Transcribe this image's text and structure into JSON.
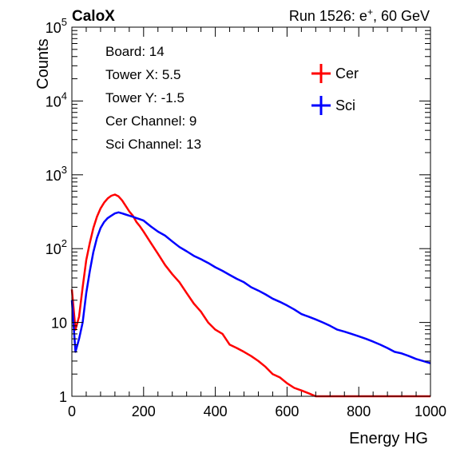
{
  "header": {
    "left_label": "CaloX",
    "right_label_prefix": "Run 1526: e",
    "right_label_sup": "+",
    "right_label_suffix": ", 60 GeV"
  },
  "info_box": {
    "lines": [
      "Board: 14",
      "Tower X: 5.5",
      "Tower Y: -1.5",
      "Cer Channel: 9",
      "Sci Channel: 13"
    ]
  },
  "colors": {
    "cer": "#ff0000",
    "sci": "#0000ff",
    "axis": "#000000"
  },
  "chart_data": {
    "type": "line",
    "title": "",
    "xlabel": "Energy HG",
    "ylabel": "Counts",
    "xlim": [
      0,
      1000
    ],
    "ylim": [
      1,
      100000
    ],
    "y_scale": "log",
    "grid": false,
    "legend_placement": "top-right",
    "x_ticks": [
      "0",
      "200",
      "400",
      "600",
      "800",
      "1000"
    ],
    "y_ticks": [
      {
        "base": "1",
        "exp": ""
      },
      {
        "base": "10",
        "exp": ""
      },
      {
        "base": "10",
        "exp": "2"
      },
      {
        "base": "10",
        "exp": "3"
      },
      {
        "base": "10",
        "exp": "4"
      },
      {
        "base": "10",
        "exp": "5"
      }
    ],
    "x": [
      0,
      10,
      20,
      30,
      40,
      50,
      60,
      70,
      80,
      90,
      100,
      110,
      120,
      130,
      140,
      150,
      160,
      170,
      180,
      190,
      200,
      220,
      240,
      260,
      280,
      300,
      320,
      340,
      360,
      380,
      400,
      420,
      440,
      460,
      480,
      500,
      520,
      540,
      560,
      580,
      600,
      620,
      640,
      660,
      680,
      700,
      720,
      740,
      760,
      780,
      800,
      820,
      840,
      860,
      880,
      900,
      920,
      940,
      960,
      980,
      1000
    ],
    "series": [
      {
        "name": "Cer",
        "values": [
          28,
          8,
          12,
          30,
          70,
          120,
          190,
          270,
          350,
          420,
          480,
          520,
          540,
          510,
          450,
          380,
          320,
          280,
          230,
          200,
          170,
          120,
          85,
          60,
          45,
          35,
          25,
          18,
          14,
          10,
          8,
          7,
          5,
          4.5,
          4,
          3.5,
          3,
          2.5,
          2,
          1.8,
          1.5,
          1.3,
          1.2,
          1.1,
          1,
          1,
          1,
          1,
          1,
          1,
          1,
          1,
          1,
          1,
          1,
          1,
          1,
          1,
          1,
          1,
          1
        ]
      },
      {
        "name": "Sci",
        "values": [
          20,
          4,
          6,
          10,
          25,
          50,
          90,
          140,
          190,
          230,
          260,
          280,
          300,
          310,
          300,
          290,
          280,
          270,
          260,
          250,
          240,
          200,
          170,
          150,
          125,
          105,
          92,
          80,
          72,
          64,
          56,
          50,
          44,
          39,
          35,
          30,
          27,
          24,
          21,
          19,
          17,
          15,
          13,
          12,
          11,
          10,
          9,
          8,
          7.5,
          7,
          6.5,
          6,
          5.5,
          5,
          4.5,
          4,
          3.8,
          3.5,
          3.2,
          3,
          2.8
        ]
      }
    ]
  }
}
